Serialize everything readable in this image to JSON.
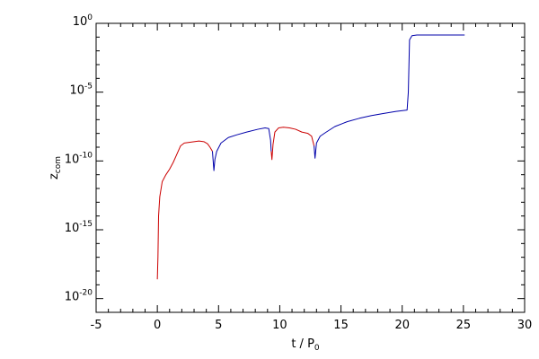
{
  "chart_data": {
    "type": "line",
    "xlabel_main": "t / P",
    "xlabel_sub": "0",
    "ylabel_main": "z",
    "ylabel_sub": "com",
    "xlim": [
      -5,
      30
    ],
    "xticks": [
      -5,
      0,
      5,
      10,
      15,
      20,
      25,
      30
    ],
    "ylim_log10": [
      -21,
      0
    ],
    "yticks": [
      {
        "base": "10",
        "exp": "0",
        "log10": 0
      },
      {
        "base": "10",
        "exp": "-5",
        "log10": -5
      },
      {
        "base": "10",
        "exp": "-10",
        "log10": -10
      },
      {
        "base": "10",
        "exp": "-15",
        "log10": -15
      },
      {
        "base": "10",
        "exp": "-20",
        "log10": -20
      }
    ],
    "yscale": "log",
    "grid": false,
    "colors": {
      "red": "#cc0000",
      "blue": "#0000aa",
      "axis": "#000000"
    },
    "series": [
      {
        "color": "red",
        "log10_values": [
          [
            0.0,
            -18.6
          ],
          [
            0.05,
            -17.0
          ],
          [
            0.1,
            -14.0
          ],
          [
            0.2,
            -12.6
          ],
          [
            0.4,
            -11.5
          ],
          [
            0.7,
            -11.0
          ],
          [
            1.0,
            -10.6
          ],
          [
            1.3,
            -10.1
          ],
          [
            1.6,
            -9.5
          ],
          [
            1.9,
            -8.9
          ],
          [
            2.2,
            -8.7
          ],
          [
            2.6,
            -8.65
          ],
          [
            3.0,
            -8.6
          ],
          [
            3.4,
            -8.55
          ],
          [
            3.8,
            -8.6
          ],
          [
            4.1,
            -8.75
          ],
          [
            4.3,
            -9.0
          ],
          [
            4.5,
            -9.3
          ]
        ]
      },
      {
        "color": "blue",
        "log10_values": [
          [
            4.5,
            -9.3
          ],
          [
            4.62,
            -10.7
          ],
          [
            4.7,
            -9.9
          ],
          [
            4.85,
            -9.3
          ],
          [
            5.2,
            -8.7
          ],
          [
            5.8,
            -8.3
          ],
          [
            6.5,
            -8.1
          ],
          [
            7.3,
            -7.9
          ],
          [
            8.2,
            -7.7
          ],
          [
            8.8,
            -7.6
          ],
          [
            9.1,
            -7.65
          ],
          [
            9.25,
            -8.5
          ],
          [
            9.3,
            -9.3
          ]
        ]
      },
      {
        "color": "red",
        "log10_values": [
          [
            9.3,
            -9.3
          ],
          [
            9.36,
            -9.9
          ],
          [
            9.45,
            -8.8
          ],
          [
            9.6,
            -7.9
          ],
          [
            9.9,
            -7.6
          ],
          [
            10.3,
            -7.55
          ],
          [
            10.8,
            -7.6
          ],
          [
            11.3,
            -7.7
          ],
          [
            11.8,
            -7.9
          ],
          [
            12.3,
            -8.0
          ],
          [
            12.6,
            -8.2
          ],
          [
            12.8,
            -8.9
          ]
        ]
      },
      {
        "color": "blue",
        "log10_values": [
          [
            12.8,
            -8.9
          ],
          [
            12.88,
            -9.8
          ],
          [
            13.0,
            -8.7
          ],
          [
            13.3,
            -8.2
          ],
          [
            13.8,
            -7.9
          ],
          [
            14.5,
            -7.5
          ],
          [
            15.5,
            -7.15
          ],
          [
            16.5,
            -6.9
          ],
          [
            17.5,
            -6.7
          ],
          [
            18.5,
            -6.55
          ],
          [
            19.5,
            -6.4
          ],
          [
            20.4,
            -6.3
          ],
          [
            20.5,
            -5.0
          ],
          [
            20.6,
            -1.2
          ],
          [
            20.8,
            -0.9
          ],
          [
            21.2,
            -0.85
          ],
          [
            22.0,
            -0.85
          ],
          [
            23.5,
            -0.85
          ],
          [
            25.1,
            -0.85
          ]
        ]
      }
    ]
  }
}
